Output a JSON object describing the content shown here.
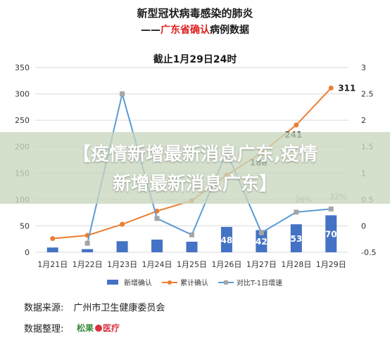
{
  "header": {
    "title_line1": "新型冠状病毒感染的肺炎",
    "title_line2_prefix": "——",
    "title_line2_highlight": "广东省确认",
    "title_line2_suffix": "病例数据",
    "subtitle": "截止1月29日24时"
  },
  "chart_data": {
    "type": "bar",
    "categories": [
      "1月21日",
      "1月22日",
      "1月23日",
      "1月24日",
      "1月25日",
      "1月26日",
      "1月27日",
      "1月28日",
      "1月29日"
    ],
    "y_left_ticks": [
      "0",
      "50",
      "100",
      "150",
      "200",
      "250",
      "300",
      "350"
    ],
    "y_right_ticks": [
      "-0.5",
      "0",
      "0.5",
      "1",
      "1.5",
      "2",
      "2.5",
      "3"
    ],
    "ylim_left": [
      0,
      350
    ],
    "ylim_right": [
      -0.5,
      3
    ],
    "grid": true,
    "legend_position": "bottom",
    "series": [
      {
        "name": "新增确认",
        "type": "bar",
        "axis": "left",
        "color": "#4472c4",
        "values": [
          9,
          6,
          21,
          24,
          20,
          48,
          42,
          53,
          70
        ],
        "labels": [
          "",
          "",
          "",
          "",
          "",
          "48",
          "42",
          "53",
          "70"
        ]
      },
      {
        "name": "累计确认",
        "type": "line",
        "axis": "left",
        "color": "#ed7d31",
        "values": [
          26,
          32,
          53,
          78,
          98,
          146,
          188,
          241,
          311
        ],
        "labels": [
          "",
          "",
          "",
          "",
          "",
          "",
          "188",
          "241",
          "311"
        ]
      },
      {
        "name": "对比T-1日增速",
        "type": "line",
        "axis": "right",
        "color": "#a5a5a5",
        "values": [
          null,
          -0.33,
          2.5,
          0.14,
          -0.17,
          1.4,
          -0.13,
          0.26,
          0.32
        ],
        "labels": [
          "",
          "",
          "",
          "",
          "",
          "",
          "",
          "26%",
          "32%"
        ]
      }
    ]
  },
  "footer": {
    "source_label": "数据来源:",
    "source_value": "广州市卫生健康委员会",
    "organizer_label": "数据整理:",
    "organizer_logo_text": "松果",
    "organizer_logo_text2": "医疗"
  },
  "banner": {
    "line1": "【疫情新增最新消息广东,疫情",
    "line2": "新增最新消息广东】"
  }
}
